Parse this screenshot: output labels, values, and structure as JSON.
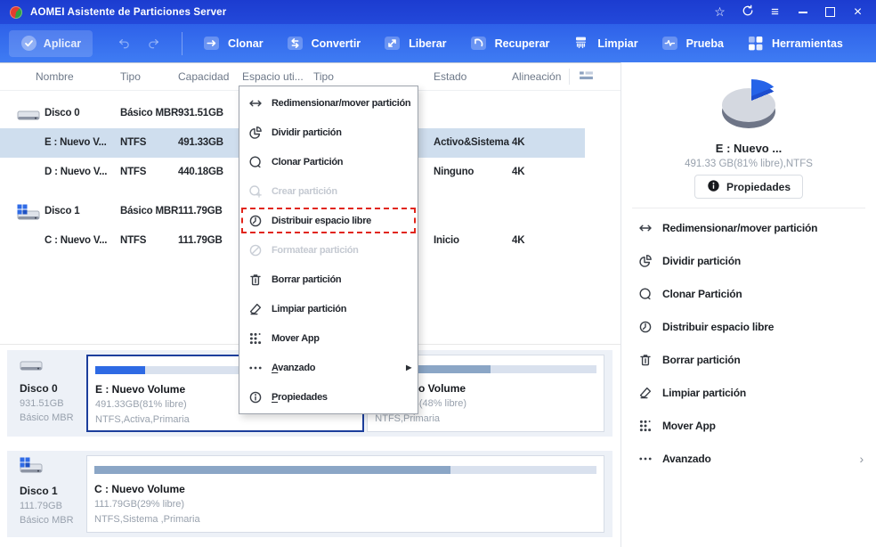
{
  "window": {
    "title": "AOMEI Asistente de Particiones Server",
    "controls": [
      {
        "name": "favorite-button",
        "icon": "star-icon"
      },
      {
        "name": "refresh-button",
        "icon": "refresh-icon"
      },
      {
        "name": "menu-button",
        "icon": "hamburger-icon"
      },
      {
        "name": "minimize-button",
        "icon": "minimize-icon"
      },
      {
        "name": "maximize-button",
        "icon": "maximize-icon"
      },
      {
        "name": "close-button",
        "icon": "close-icon"
      }
    ]
  },
  "toolbar": {
    "apply": {
      "label": "Aplicar",
      "icon": "check-icon"
    },
    "buttons": [
      {
        "label": "Clonar",
        "icon": "clone-icon"
      },
      {
        "label": "Convertir",
        "icon": "convert-icon"
      },
      {
        "label": "Liberar",
        "icon": "release-icon"
      },
      {
        "label": "Recuperar",
        "icon": "recover-icon"
      },
      {
        "label": "Limpiar",
        "icon": "clean-icon"
      },
      {
        "label": "Prueba",
        "icon": "test-icon"
      },
      {
        "label": "Herramientas",
        "icon": "tools-icon"
      }
    ]
  },
  "table": {
    "headers": [
      "Nombre",
      "Tipo",
      "Capacidad",
      "Espacio uti...",
      "Tipo",
      "Estado",
      "Alineación"
    ],
    "view_icon": "list-view-icon",
    "rows": [
      {
        "kind": "disk",
        "icon": "disk-icon",
        "name": "Disco 0",
        "type": "Básico MBR",
        "capacity": "931.51GB"
      },
      {
        "kind": "partition",
        "selected": true,
        "name": "E : Nuevo V...",
        "type": "NTFS",
        "capacity": "491.33GB",
        "status": "Activo&Sistema",
        "alignment": "4K"
      },
      {
        "kind": "partition",
        "name": "D : Nuevo V...",
        "type": "NTFS",
        "capacity": "440.18GB",
        "status": "Ninguno",
        "alignment": "4K"
      },
      {
        "kind": "disk",
        "icon": "system-disk-icon",
        "name": "Disco 1",
        "type": "Básico MBR",
        "capacity": "111.79GB"
      },
      {
        "kind": "partition",
        "name": "C : Nuevo V...",
        "type": "NTFS",
        "capacity": "111.79GB",
        "status": "Inicio",
        "alignment": "4K"
      }
    ]
  },
  "context_menu": {
    "items": [
      {
        "label": "Redimensionar/mover partición",
        "icon": "resize-move-icon",
        "enabled": true
      },
      {
        "label": "Dividir partición",
        "icon": "split-partition-icon",
        "enabled": true
      },
      {
        "label": "Clonar Partición",
        "icon": "clone-partition-icon",
        "enabled": true
      },
      {
        "label": "Crear partición",
        "icon": "create-partition-icon",
        "enabled": false
      },
      {
        "label": "Distribuir espacio libre",
        "icon": "allocate-space-icon",
        "enabled": true,
        "highlighted": true
      },
      {
        "label": "Formatear partición",
        "icon": "format-partition-icon",
        "enabled": false
      },
      {
        "label": "Borrar partición",
        "icon": "delete-partition-icon",
        "enabled": true
      },
      {
        "label": "Limpiar partición",
        "icon": "wipe-partition-icon",
        "enabled": true
      },
      {
        "label": "Mover App",
        "icon": "move-app-icon",
        "enabled": true
      },
      {
        "label": "Avanzado",
        "icon": "advanced-icon",
        "enabled": true,
        "submenu": true,
        "underline": "A"
      },
      {
        "label": "Propiedades",
        "icon": "properties-icon",
        "enabled": true,
        "underline": "P"
      }
    ]
  },
  "detail_panel": {
    "pie": {
      "used_deg": 68,
      "used_color": "#2563e8",
      "used_side_color": "#1d4ecf",
      "free_color": "#d4d8e0",
      "side_color": "#6e7587"
    },
    "partition_name": "E : Nuevo ...",
    "partition_info": "491.33 GB(81% libre),NTFS",
    "properties_button": {
      "label": "Propiedades",
      "icon": "info-icon"
    },
    "actions": [
      {
        "label": "Redimensionar/mover partición",
        "icon": "resize-move-icon"
      },
      {
        "label": "Dividir partición",
        "icon": "split-partition-icon"
      },
      {
        "label": "Clonar Partición",
        "icon": "clone-partition-icon"
      },
      {
        "label": "Distribuir espacio libre",
        "icon": "allocate-space-icon"
      },
      {
        "label": "Borrar partición",
        "icon": "delete-partition-icon"
      },
      {
        "label": "Limpiar partición",
        "icon": "wipe-partition-icon"
      },
      {
        "label": "Mover App",
        "icon": "move-app-icon"
      },
      {
        "label": "Avanzado",
        "icon": "advanced-icon",
        "submenu": true
      }
    ]
  },
  "disk_map": {
    "disks": [
      {
        "name": "Disco 0",
        "capacity": "931.51GB",
        "type": "Básico MBR",
        "icon": "disk-icon",
        "partitions": [
          {
            "label": "E : Nuevo Volume",
            "info": "491.33GB(81% libre)",
            "fs": "NTFS,Activa,Primaria",
            "used_pct": 19,
            "width_pct": 53.8,
            "selected": true,
            "fill": "#2e6ae4"
          },
          {
            "label": "D : Nuevo Volume",
            "info": "440.18GB(48% libre)",
            "fs": "NTFS,Primaria",
            "used_pct": 52,
            "width_pct": 46.2,
            "selected": false,
            "fill": "#8ba6c6"
          }
        ]
      },
      {
        "name": "Disco 1",
        "capacity": "111.79GB",
        "type": "Básico MBR",
        "icon": "system-disk-icon",
        "partitions": [
          {
            "label": "C : Nuevo Volume",
            "info": "111.79GB(29% libre)",
            "fs": "NTFS,Sistema ,Primaria",
            "used_pct": 71,
            "width_pct": 100,
            "selected": false,
            "fill": "#8ba6c6"
          }
        ]
      }
    ]
  },
  "colors": {
    "titlebar": "#1c3cd0",
    "toolbar_top": "#2e61e9",
    "toolbar_bottom": "#3f7cf3",
    "selected_row": "#cfdeee",
    "accent": "#2e6ae4",
    "steel_fill": "#8ba6c6",
    "highlight_dashed": "#e1251b",
    "panel_bg": "#edf1f7"
  }
}
